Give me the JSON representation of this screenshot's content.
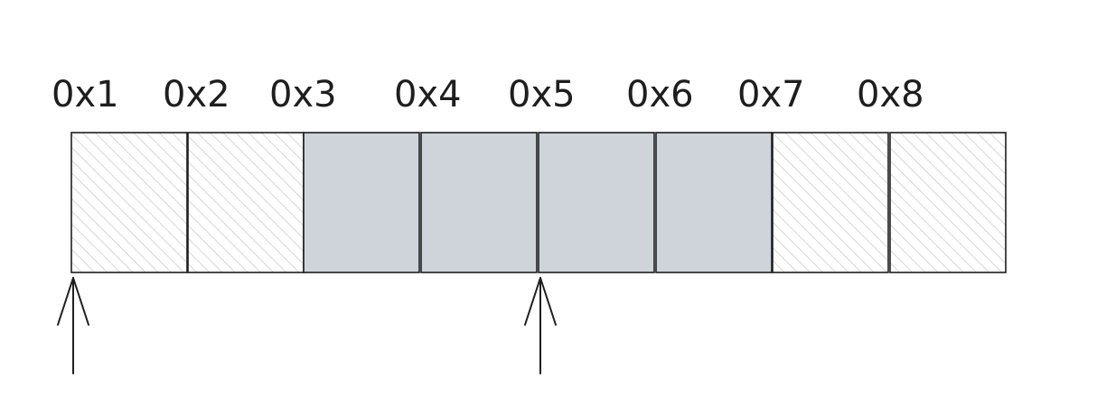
{
  "diagram": {
    "type": "memory-cells",
    "colors": {
      "stroke": "#1e1e1e",
      "used_fill": "#ced4da",
      "free_hatch": "#d6d6d6",
      "background": "#ffffff"
    },
    "cells": [
      {
        "label": "0x1",
        "state": "free"
      },
      {
        "label": "0x2",
        "state": "free"
      },
      {
        "label": "0x3",
        "state": "used"
      },
      {
        "label": "0x4",
        "state": "used"
      },
      {
        "label": "0x5",
        "state": "used"
      },
      {
        "label": "0x6",
        "state": "used"
      },
      {
        "label": "0x7",
        "state": "free"
      },
      {
        "label": "0x8",
        "state": "free"
      }
    ],
    "pointers": [
      {
        "name": "pointer-at-0x1",
        "target": "0x1"
      },
      {
        "name": "pointer-at-0x5",
        "target": "0x5"
      }
    ]
  }
}
